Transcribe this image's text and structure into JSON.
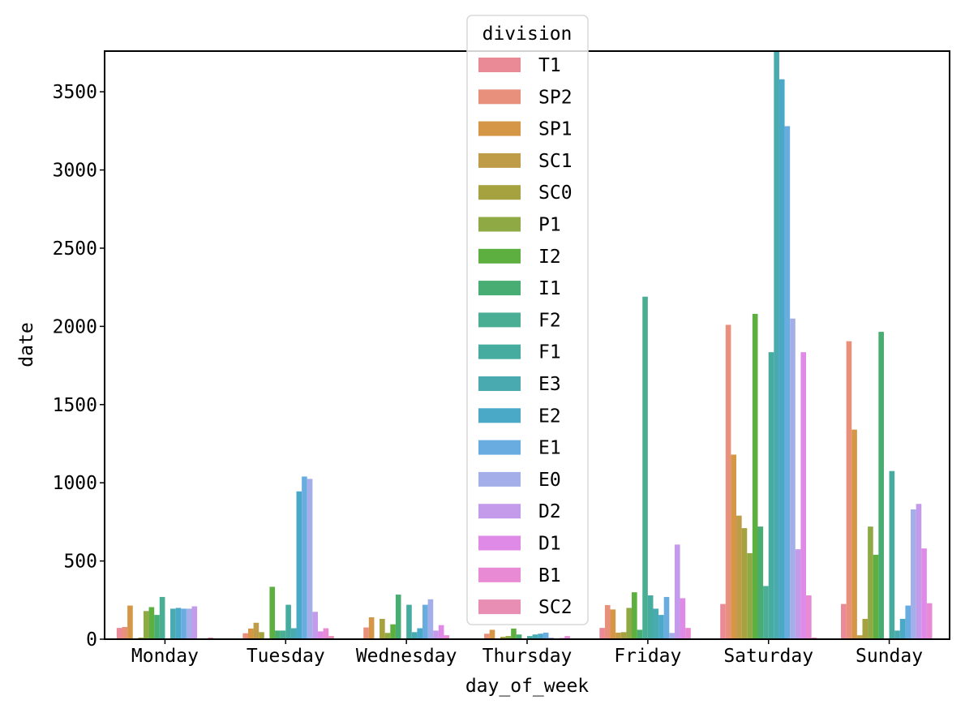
{
  "chart_data": {
    "type": "bar",
    "xlabel": "day_of_week",
    "ylabel": "date",
    "ylim": [
      0,
      3760
    ],
    "yticks": [
      0,
      500,
      1000,
      1500,
      2000,
      2500,
      3000,
      3500
    ],
    "grid": false,
    "legend": {
      "title": "division",
      "placement": "top-center"
    },
    "categories": [
      "Monday",
      "Tuesday",
      "Wednesday",
      "Thursday",
      "Friday",
      "Saturday",
      "Sunday"
    ],
    "series": [
      {
        "name": "T1",
        "color": "#ea8a96",
        "values": [
          72,
          5,
          5,
          5,
          72,
          225,
          225
        ]
      },
      {
        "name": "SP2",
        "color": "#e8907c",
        "values": [
          78,
          38,
          75,
          35,
          218,
          2010,
          1905
        ]
      },
      {
        "name": "SP1",
        "color": "#d59646",
        "values": [
          215,
          68,
          140,
          60,
          190,
          1180,
          1340
        ]
      },
      {
        "name": "SC1",
        "color": "#bf9c48",
        "values": [
          5,
          105,
          5,
          5,
          42,
          790,
          25
        ]
      },
      {
        "name": "SC0",
        "color": "#a5a23f",
        "values": [
          10,
          45,
          130,
          15,
          45,
          710,
          130
        ]
      },
      {
        "name": "P1",
        "color": "#8fa944",
        "values": [
          180,
          5,
          40,
          20,
          200,
          550,
          720
        ]
      },
      {
        "name": "I2",
        "color": "#5daf40",
        "values": [
          205,
          335,
          95,
          68,
          300,
          2080,
          540
        ]
      },
      {
        "name": "I1",
        "color": "#47ad72",
        "values": [
          155,
          55,
          285,
          30,
          60,
          720,
          1965
        ]
      },
      {
        "name": "F2",
        "color": "#4aae94",
        "values": [
          270,
          55,
          5,
          5,
          2190,
          340,
          5
        ]
      },
      {
        "name": "F1",
        "color": "#46aca0",
        "values": [
          5,
          220,
          220,
          20,
          280,
          1835,
          1075
        ]
      },
      {
        "name": "E3",
        "color": "#49aab0",
        "values": [
          195,
          70,
          45,
          30,
          195,
          3760,
          55
        ]
      },
      {
        "name": "E2",
        "color": "#4ba9c8",
        "values": [
          200,
          945,
          70,
          35,
          155,
          3580,
          130
        ]
      },
      {
        "name": "E1",
        "color": "#68ace0",
        "values": [
          195,
          1040,
          220,
          42,
          270,
          3280,
          215
        ]
      },
      {
        "name": "E0",
        "color": "#a4aee8",
        "values": [
          195,
          1025,
          255,
          10,
          40,
          2050,
          830
        ]
      },
      {
        "name": "D2",
        "color": "#c49bea",
        "values": [
          210,
          175,
          55,
          5,
          605,
          575,
          865
        ]
      },
      {
        "name": "D1",
        "color": "#e08ae8",
        "values": [
          5,
          50,
          90,
          8,
          262,
          1835,
          580
        ]
      },
      {
        "name": "B1",
        "color": "#e88ad4",
        "values": [
          5,
          70,
          25,
          20,
          72,
          280,
          230
        ]
      },
      {
        "name": "SC2",
        "color": "#e88db4",
        "values": [
          10,
          20,
          5,
          5,
          5,
          10,
          5
        ]
      }
    ]
  }
}
